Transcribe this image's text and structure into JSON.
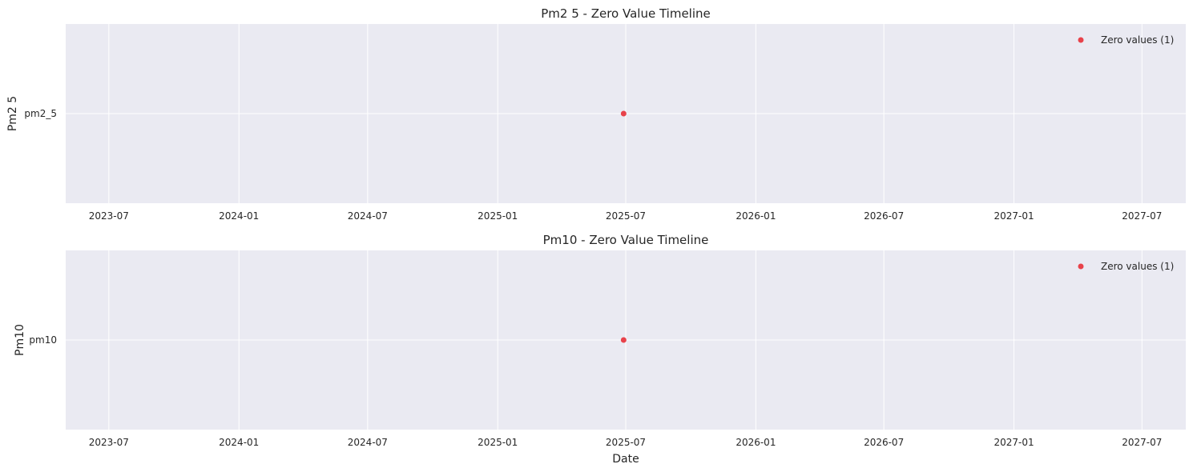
{
  "chart_data": [
    {
      "type": "scatter",
      "title": "Pm2 5 - Zero Value Timeline",
      "xlabel": "",
      "ylabel": "Pm2 5",
      "y_categories": [
        "pm2_5"
      ],
      "x_ticks": [
        "2023-07",
        "2024-01",
        "2024-07",
        "2025-01",
        "2025-07",
        "2026-01",
        "2026-07",
        "2027-01",
        "2027-07"
      ],
      "xlim": [
        "2023-05-01",
        "2027-09-01"
      ],
      "grid": true,
      "legend_position": "top-right",
      "series": [
        {
          "name": "Zero values (1)",
          "color": "#e8424a",
          "points": [
            {
              "x": "2025-06-28",
              "y": "pm2_5"
            }
          ]
        }
      ]
    },
    {
      "type": "scatter",
      "title": "Pm10 - Zero Value Timeline",
      "xlabel": "Date",
      "ylabel": "Pm10",
      "y_categories": [
        "pm10"
      ],
      "x_ticks": [
        "2023-07",
        "2024-01",
        "2024-07",
        "2025-01",
        "2025-07",
        "2026-01",
        "2026-07",
        "2027-01",
        "2027-07"
      ],
      "xlim": [
        "2023-05-01",
        "2027-09-01"
      ],
      "grid": true,
      "legend_position": "top-right",
      "series": [
        {
          "name": "Zero values (1)",
          "color": "#e8424a",
          "points": [
            {
              "x": "2025-06-28",
              "y": "pm10"
            }
          ]
        }
      ]
    }
  ]
}
